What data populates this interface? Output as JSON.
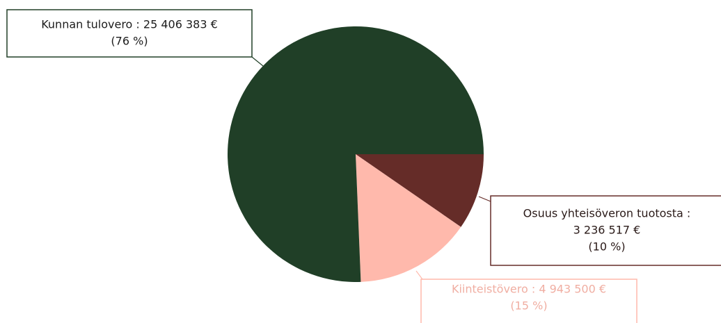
{
  "chart_data": {
    "type": "pie",
    "values": [
      3236517,
      4943500,
      25406383
    ],
    "value_labels": [
      [
        "Osuus yhteisöveron tuotosta :",
        "3 236 517 €",
        "(10 %)"
      ],
      [
        "Kiinteistövero : 4 943 500 €",
        "(15 %)"
      ],
      [
        "Kunnan tulovero : 25 406 383 €",
        "(76 %)"
      ]
    ],
    "colors": [
      "#652c28",
      "#ffb9ac",
      "#203f27"
    ],
    "label_text_colors": [
      "#2a1a18",
      "#f0aea2",
      "#1c1c1c"
    ],
    "start_angle": 0,
    "direction": "clockwise"
  }
}
